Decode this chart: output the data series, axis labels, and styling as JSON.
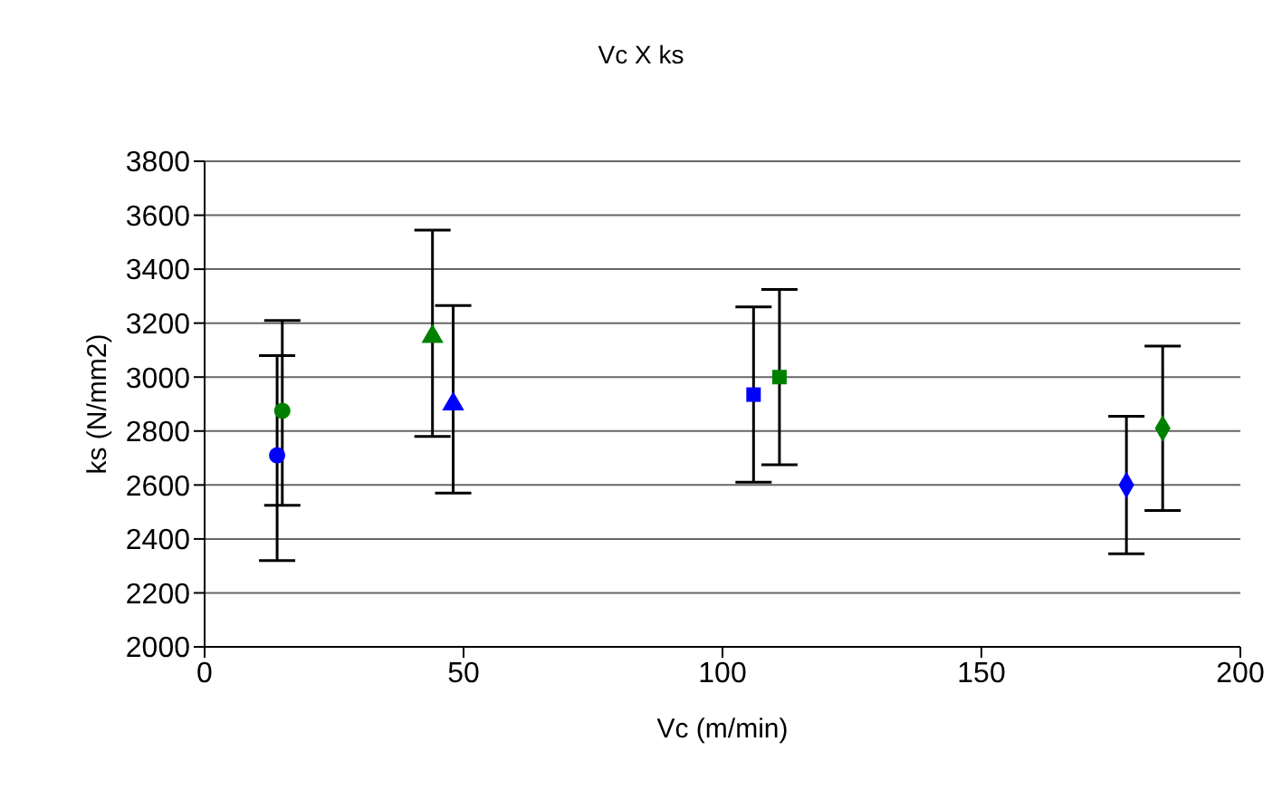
{
  "chart_data": {
    "type": "scatter",
    "title": "Vc X ks",
    "xlabel": "Vc (m/min)",
    "ylabel": "ks (N/mm2)",
    "xlim": [
      0,
      200
    ],
    "xticks": [
      0,
      50,
      100,
      150,
      200
    ],
    "ylim": [
      2000,
      3800
    ],
    "yticks": [
      2000,
      2200,
      2400,
      2600,
      2800,
      3000,
      3200,
      3400,
      3600,
      3800
    ],
    "grid": "y",
    "series": [
      {
        "color": "#0000ff",
        "marker": "circle",
        "x": [
          14
        ],
        "values": [
          2710
        ],
        "errors": [
          [
            2320,
            3080
          ]
        ]
      },
      {
        "color": "#008000",
        "marker": "circle",
        "x": [
          15
        ],
        "values": [
          2875
        ],
        "errors": [
          [
            2525,
            3210
          ]
        ]
      },
      {
        "color": "#008000",
        "marker": "triangle",
        "x": [
          44
        ],
        "values": [
          3150
        ],
        "errors": [
          [
            2780,
            3545
          ]
        ]
      },
      {
        "color": "#0000ff",
        "marker": "triangle",
        "x": [
          48
        ],
        "values": [
          2900
        ],
        "errors": [
          [
            2570,
            3265
          ]
        ]
      },
      {
        "color": "#0000ff",
        "marker": "square",
        "x": [
          106
        ],
        "values": [
          2935
        ],
        "errors": [
          [
            2610,
            3260
          ]
        ]
      },
      {
        "color": "#008000",
        "marker": "square",
        "x": [
          111
        ],
        "values": [
          3000
        ],
        "errors": [
          [
            2675,
            3325
          ]
        ]
      },
      {
        "color": "#0000ff",
        "marker": "diamond",
        "x": [
          178
        ],
        "values": [
          2600
        ],
        "errors": [
          [
            2345,
            2855
          ]
        ]
      },
      {
        "color": "#008000",
        "marker": "diamond",
        "x": [
          185
        ],
        "values": [
          2810
        ],
        "errors": [
          [
            2505,
            3115
          ]
        ]
      }
    ]
  }
}
